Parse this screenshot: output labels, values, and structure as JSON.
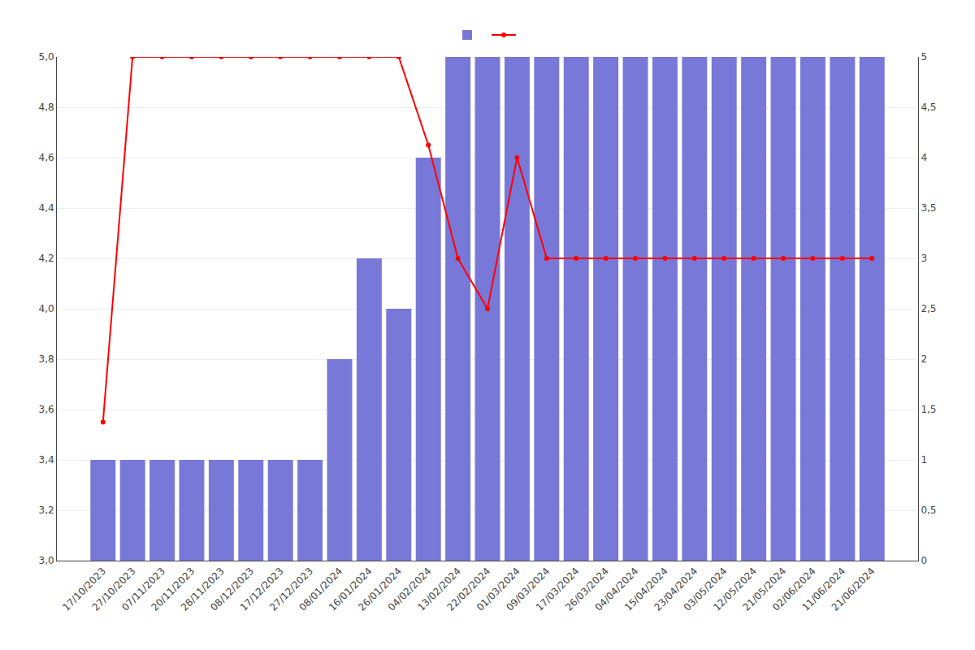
{
  "chart_data": {
    "type": "bar",
    "categories": [
      "17/10/2023",
      "27/10/2023",
      "07/11/2023",
      "20/11/2023",
      "28/11/2023",
      "08/12/2023",
      "17/12/2023",
      "27/12/2023",
      "08/01/2024",
      "16/01/2024",
      "26/01/2024",
      "04/02/2024",
      "13/02/2024",
      "22/02/2024",
      "01/03/2024",
      "09/03/2024",
      "17/03/2024",
      "26/03/2024",
      "04/04/2024",
      "15/04/2024",
      "23/04/2024",
      "03/05/2024",
      "12/05/2024",
      "21/05/2024",
      "02/06/2024",
      "11/06/2024",
      "21/06/2024"
    ],
    "series": [
      {
        "type": "bar",
        "color": "#7878d8",
        "values": [
          3.4,
          3.4,
          3.4,
          3.4,
          3.4,
          3.4,
          3.4,
          3.4,
          3.8,
          4.2,
          4.0,
          4.6,
          5.0,
          5.0,
          5.0,
          5.0,
          5.0,
          5.0,
          5.0,
          5.0,
          5.0,
          5.0,
          5.0,
          5.0,
          5.0,
          5.0,
          5.0
        ]
      },
      {
        "type": "line",
        "color": "#ff0000",
        "marker": "circle",
        "line_style": "solid",
        "values": [
          3.55,
          5.0,
          5.0,
          5.0,
          5.0,
          5.0,
          5.0,
          5.0,
          5.0,
          5.0,
          5.0,
          4.65,
          4.2,
          4.0,
          4.6,
          4.2,
          4.2,
          4.2,
          4.2,
          4.2,
          4.2,
          4.2,
          4.2,
          4.2,
          4.2,
          4.2,
          4.2
        ]
      }
    ],
    "ylim": [
      3.0,
      5.0
    ],
    "yticks": [
      {
        "value": 3.0,
        "label": "3,0"
      },
      {
        "value": 3.2,
        "label": "3,2"
      },
      {
        "value": 3.4,
        "label": "3,4"
      },
      {
        "value": 3.6,
        "label": "3,6"
      },
      {
        "value": 3.8,
        "label": "3,8"
      },
      {
        "value": 4.0,
        "label": "4,0"
      },
      {
        "value": 4.2,
        "label": "4,2"
      },
      {
        "value": 4.4,
        "label": "4,4"
      },
      {
        "value": 4.6,
        "label": "4,6"
      },
      {
        "value": 4.8,
        "label": "4,8"
      },
      {
        "value": 5.0,
        "label": "5,0"
      }
    ],
    "y2lim": [
      0.0,
      5.0
    ],
    "y2ticks": [
      0,
      {
        "value": 0.5,
        "label": "0,5"
      },
      1,
      {
        "value": 1.5,
        "label": "1,5"
      },
      2,
      {
        "value": 2.5,
        "label": "2,5"
      },
      3,
      {
        "value": 3.5,
        "label": "3,5"
      },
      4,
      {
        "value": 4.5,
        "label": "4,5"
      },
      5
    ],
    "grid": true,
    "legend": "upper center"
  }
}
